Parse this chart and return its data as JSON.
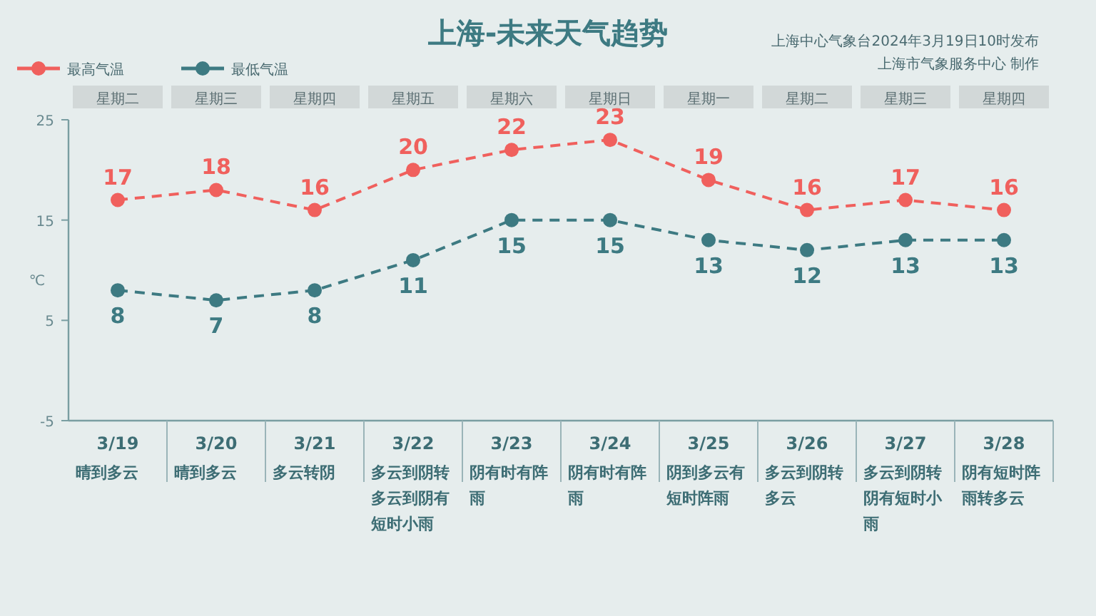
{
  "chart_data": {
    "type": "line",
    "title": "上海-未来天气趋势",
    "ylabel": "℃",
    "categories": [
      "3/19\n晴到多云",
      "3/20\n晴到多云",
      "3/21\n多云转阴",
      "3/22\n多云到阴转多云到阴有短时小雨",
      "3/23\n阴有时有阵雨",
      "3/24\n阴有时有阵雨",
      "3/25\n阴到多云有短时阵雨",
      "3/26\n多云到阴转多云",
      "3/27\n多云到阴转阴有短时小雨",
      "3/28\n阴有短时阵雨转多云"
    ],
    "series": [
      {
        "name": "最高气温",
        "color": "#f0605d",
        "values": [
          17,
          18,
          16,
          20,
          22,
          23,
          19,
          16,
          17,
          16
        ]
      },
      {
        "name": "最低气温",
        "color": "#3d7a82",
        "values": [
          8,
          7,
          8,
          11,
          15,
          15,
          13,
          12,
          13,
          13
        ]
      }
    ],
    "ylim": [
      -5,
      25
    ],
    "yticks": [
      -5,
      5,
      15,
      25
    ],
    "annotations": [
      "星期二",
      "星期三",
      "星期四",
      "星期五",
      "星期六",
      "星期日",
      "星期一",
      "星期二",
      "星期三",
      "星期四",
      "上海中心气象台2024年3月19日10时发布",
      "上海市气象服务中心 制作"
    ],
    "data_labels": true,
    "marker": "circle",
    "line_style": "dashed",
    "legend": "top left",
    "grid": false
  }
}
